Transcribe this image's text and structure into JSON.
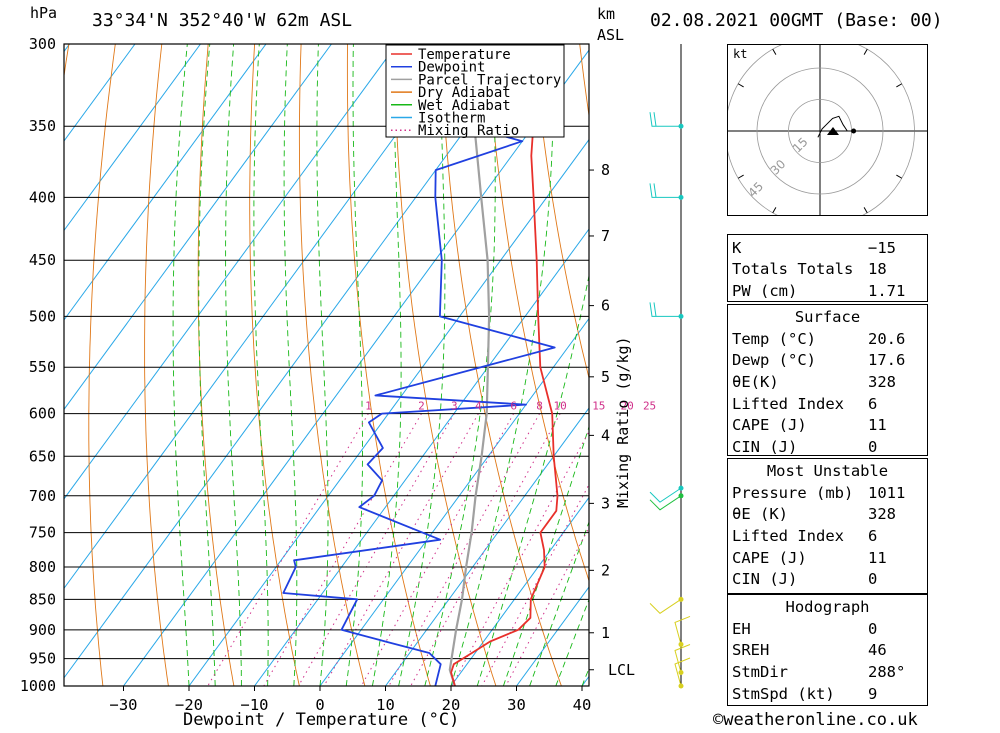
{
  "header": {
    "pressure_unit": "hPa",
    "location": "33°34'N  352°40'W  62m  ASL",
    "km_label": "km",
    "asl_label": "ASL",
    "datetime": "02.08.2021  00GMT  (Base: 00)"
  },
  "footer": {
    "x_axis_label": "Dewpoint / Temperature (°C)",
    "credit": "©weatheronline.co.uk"
  },
  "colors": {
    "temperature": "#e8302b",
    "dewpoint": "#2040e0",
    "parcel": "#a0a0a0",
    "dry_adiabat": "#e07818",
    "wet_adiabat": "#18b818",
    "isotherm": "#2aa8e8",
    "mixing_ratio": "#d0308a",
    "wind": "#18c8c0"
  },
  "chart_data": {
    "type": "skew-t",
    "xlabel": "Dewpoint / Temperature (°C)",
    "ylabel": "hPa",
    "x_ticks": [
      -30,
      -20,
      -10,
      0,
      10,
      20,
      30,
      40
    ],
    "x_tick_labels": [
      "−30",
      "−20",
      "−10",
      "0",
      "10",
      "20",
      "30",
      "40"
    ],
    "pressure_levels": [
      300,
      350,
      400,
      450,
      500,
      550,
      600,
      650,
      700,
      750,
      800,
      850,
      900,
      950,
      1000
    ],
    "height_ticks_km": [
      {
        "label": "8",
        "p": 380
      },
      {
        "label": "7",
        "p": 430
      },
      {
        "label": "6",
        "p": 490
      },
      {
        "label": "5",
        "p": 560
      },
      {
        "label": "4",
        "p": 625
      },
      {
        "label": "3",
        "p": 710
      },
      {
        "label": "2",
        "p": 805
      },
      {
        "label": "1",
        "p": 905
      },
      {
        "label": "LCL",
        "p": 970
      }
    ],
    "mixing_ratio_label": "Mixing Ratio (g/kg)",
    "mixing_ratio_values": [
      "1",
      "2",
      "3",
      "4",
      "6",
      "8",
      "10",
      "15",
      "20",
      "25"
    ],
    "legend": [
      "Temperature",
      "Dewpoint",
      "Parcel Trajectory",
      "Dry Adiabat",
      "Wet Adiabat",
      "Isotherm",
      "Mixing Ratio"
    ],
    "temperature": [
      {
        "p": 1000,
        "t": 20.6
      },
      {
        "p": 975,
        "t": 18.5
      },
      {
        "p": 960,
        "t": 18.0
      },
      {
        "p": 940,
        "t": 19.5
      },
      {
        "p": 920,
        "t": 21.0
      },
      {
        "p": 900,
        "t": 24.0
      },
      {
        "p": 880,
        "t": 24.5
      },
      {
        "p": 850,
        "t": 22.5
      },
      {
        "p": 800,
        "t": 21.0
      },
      {
        "p": 775,
        "t": 19.0
      },
      {
        "p": 750,
        "t": 16.5
      },
      {
        "p": 720,
        "t": 16.5
      },
      {
        "p": 700,
        "t": 15.0
      },
      {
        "p": 650,
        "t": 10.0
      },
      {
        "p": 600,
        "t": 5.0
      },
      {
        "p": 550,
        "t": -2.0
      },
      {
        "p": 500,
        "t": -8.0
      },
      {
        "p": 450,
        "t": -14.5
      },
      {
        "p": 400,
        "t": -22.0
      },
      {
        "p": 370,
        "t": -27.0
      },
      {
        "p": 350,
        "t": -30.0
      },
      {
        "p": 300,
        "t": -38.0
      }
    ],
    "dewpoint": [
      {
        "p": 1000,
        "t": 17.6
      },
      {
        "p": 960,
        "t": 16.0
      },
      {
        "p": 940,
        "t": 13.0
      },
      {
        "p": 920,
        "t": 5.0
      },
      {
        "p": 900,
        "t": -3.0
      },
      {
        "p": 850,
        "t": -4.0
      },
      {
        "p": 840,
        "t": -16.0
      },
      {
        "p": 800,
        "t": -17.0
      },
      {
        "p": 790,
        "t": -18.0
      },
      {
        "p": 760,
        "t": 2.0
      },
      {
        "p": 715,
        "t": -14.0
      },
      {
        "p": 700,
        "t": -13.0
      },
      {
        "p": 680,
        "t": -13.5
      },
      {
        "p": 660,
        "t": -17.5
      },
      {
        "p": 640,
        "t": -17.0
      },
      {
        "p": 610,
        "t": -22.0
      },
      {
        "p": 600,
        "t": -21.0
      },
      {
        "p": 590,
        "t": 0.0
      },
      {
        "p": 580,
        "t": -24.0
      },
      {
        "p": 530,
        "t": -2.0
      },
      {
        "p": 500,
        "t": -23.0
      },
      {
        "p": 450,
        "t": -29.0
      },
      {
        "p": 400,
        "t": -37.0
      },
      {
        "p": 380,
        "t": -40.0
      },
      {
        "p": 360,
        "t": -30.0
      },
      {
        "p": 350,
        "t": -40.0
      },
      {
        "p": 340,
        "t": -36.0
      },
      {
        "p": 300,
        "t": -55.0
      }
    ],
    "parcel": [
      {
        "p": 1000,
        "t": 20.6
      },
      {
        "p": 970,
        "t": 18.0
      },
      {
        "p": 900,
        "t": 14.5
      },
      {
        "p": 850,
        "t": 12.0
      },
      {
        "p": 800,
        "t": 9.0
      },
      {
        "p": 750,
        "t": 6.0
      },
      {
        "p": 700,
        "t": 2.5
      },
      {
        "p": 650,
        "t": -1.0
      },
      {
        "p": 600,
        "t": -5.0
      },
      {
        "p": 550,
        "t": -10.0
      },
      {
        "p": 500,
        "t": -15.5
      },
      {
        "p": 450,
        "t": -22.0
      },
      {
        "p": 400,
        "t": -30.0
      },
      {
        "p": 350,
        "t": -39.0
      },
      {
        "p": 300,
        "t": -50.0
      }
    ],
    "wind_barb_levels": [
      1000,
      975,
      925,
      850,
      700,
      690,
      500,
      400,
      350
    ],
    "hodograph": {
      "unit": "kt",
      "ring_labels": [
        "15",
        "30",
        "45"
      ],
      "trace": [
        [
          -1,
          -3
        ],
        [
          1,
          1
        ],
        [
          3,
          3
        ],
        [
          6,
          6
        ],
        [
          9,
          7
        ],
        [
          11,
          3
        ],
        [
          13,
          0
        ],
        [
          16,
          0
        ]
      ]
    }
  },
  "indices": {
    "basic": [
      {
        "label": "K",
        "value": "−15"
      },
      {
        "label": "Totals Totals",
        "value": "18"
      },
      {
        "label": "PW (cm)",
        "value": "1.71"
      }
    ],
    "surface": {
      "title": "Surface",
      "rows": [
        {
          "label": "Temp (°C)",
          "value": "20.6"
        },
        {
          "label": "Dewp (°C)",
          "value": "17.6"
        },
        {
          "label": "θE(K)",
          "value": "328"
        },
        {
          "label": "Lifted Index",
          "value": "6"
        },
        {
          "label": "CAPE (J)",
          "value": "11"
        },
        {
          "label": "CIN (J)",
          "value": "0"
        }
      ]
    },
    "most_unstable": {
      "title": "Most Unstable",
      "rows": [
        {
          "label": "Pressure (mb)",
          "value": "1011"
        },
        {
          "label": "θE (K)",
          "value": "328"
        },
        {
          "label": "Lifted Index",
          "value": "6"
        },
        {
          "label": "CAPE (J)",
          "value": "11"
        },
        {
          "label": "CIN (J)",
          "value": "0"
        }
      ]
    },
    "hodograph": {
      "title": "Hodograph",
      "rows": [
        {
          "label": "EH",
          "value": "0"
        },
        {
          "label": "SREH",
          "value": "46"
        },
        {
          "label": "StmDir",
          "value": "288°"
        },
        {
          "label": "StmSpd (kt)",
          "value": "9"
        }
      ]
    }
  }
}
